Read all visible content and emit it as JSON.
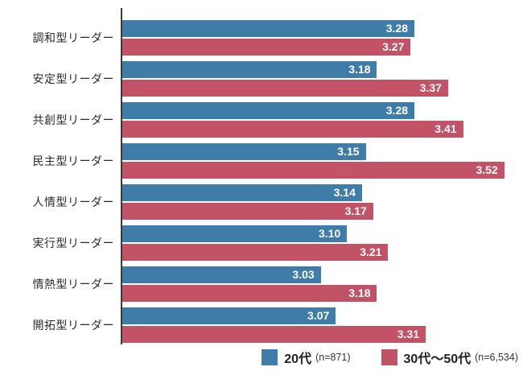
{
  "chart_data": {
    "type": "bar",
    "orientation": "horizontal",
    "title": "",
    "categories": [
      "調和型リーダー",
      "安定型リーダー",
      "共創型リーダー",
      "民主型リーダー",
      "人情型リーダー",
      "実行型リーダー",
      "情熱型リーダー",
      "開拓型リーダー"
    ],
    "series": [
      {
        "name": "20代",
        "sample_label": "(n=871)",
        "color": "#3f7ca8",
        "values": [
          3.28,
          3.18,
          3.28,
          3.15,
          3.14,
          3.1,
          3.03,
          3.07
        ],
        "value_labels": [
          "3.28",
          "3.18",
          "3.28",
          "3.15",
          "3.14",
          "3.10",
          "3.03",
          "3.07"
        ]
      },
      {
        "name": "30代〜50代",
        "sample_label": "(n=6,534)",
        "color": "#c25266",
        "values": [
          3.27,
          3.37,
          3.41,
          3.52,
          3.17,
          3.21,
          3.18,
          3.31
        ],
        "value_labels": [
          "3.27",
          "3.37",
          "3.41",
          "3.52",
          "3.17",
          "3.21",
          "3.18",
          "3.31"
        ]
      }
    ],
    "xlim": [
      2.5,
      3.57
    ],
    "grid": false,
    "legend_position": "bottom-right",
    "value_label_color": "#ffffff",
    "axis_color": "#3a3a3a",
    "label_color": "#2b2b2b",
    "background_color": "#ffffff"
  }
}
